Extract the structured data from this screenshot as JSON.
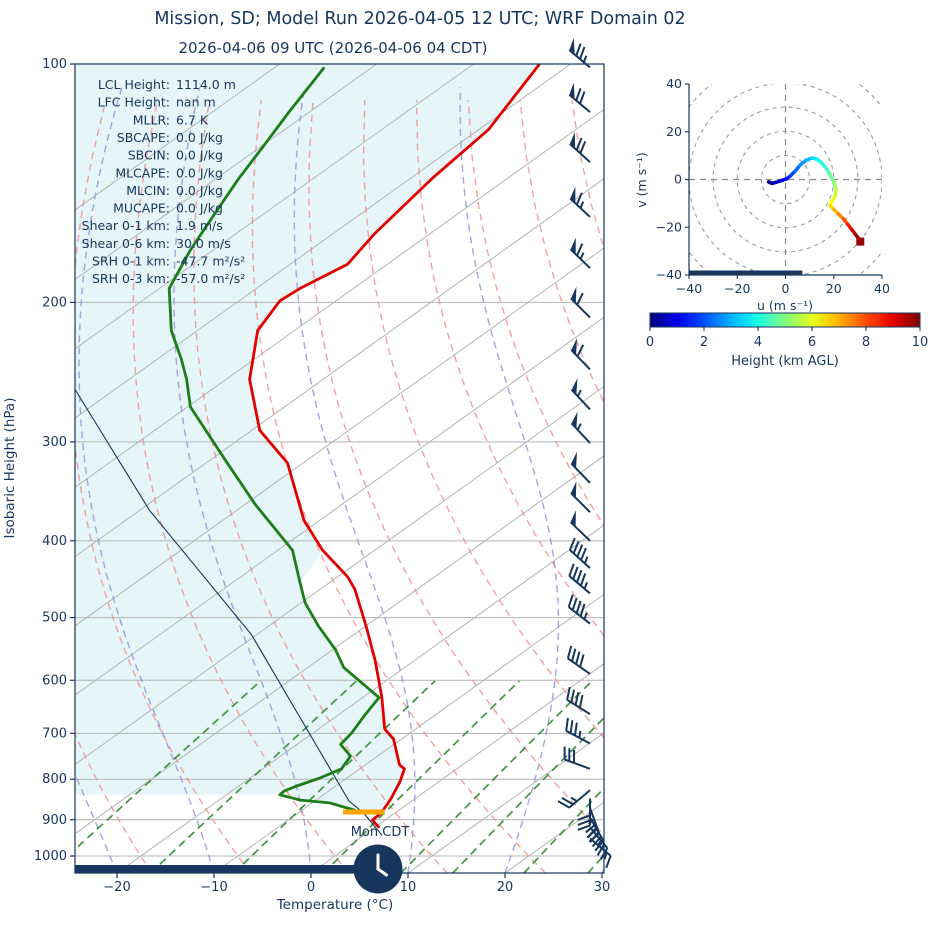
{
  "header": {
    "title": "Mission, SD; Model Run 2026-04-05 12 UTC; WRF Domain 02",
    "subtitle": "2026-04-06 09 UTC  (2026-04-06 04 CDT)"
  },
  "colors": {
    "navy": "#17365d",
    "temperature": "#e00000",
    "dewpoint": "#1e7d1a",
    "parcel": "#17365d",
    "shade": "#d8f0f3",
    "dry_adiabat": "#f09090",
    "moist_adiabat": "#9393de",
    "mixing_ratio": "#2e8b2e",
    "grid": "#b3b3b3",
    "rings": "#9a9a9a",
    "surface_marker": "#ffa500",
    "hodo_end_marker": "#990000"
  },
  "stats": [
    {
      "label": "LCL Height:",
      "value": "1114.0 m"
    },
    {
      "label": "LFC Height:",
      "value": "nan m"
    },
    {
      "label": "MLLR:",
      "value": "6.7 K"
    },
    {
      "label": "SBCAPE:",
      "value": "0.0 J/kg"
    },
    {
      "label": "SBCIN:",
      "value": "0.0 J/kg"
    },
    {
      "label": "MLCAPE:",
      "value": "0.0 J/kg"
    },
    {
      "label": "MLCIN:",
      "value": "0.0 J/kg"
    },
    {
      "label": "MUCAPE:",
      "value": "0.0 J/kg"
    },
    {
      "label": "Shear 0-1 km:",
      "value": "1.9 m/s"
    },
    {
      "label": "Shear 0-6 km:",
      "value": "30.0 m/s"
    },
    {
      "label": "SRH 0-1 km:",
      "value": "-47.7 m²/s²"
    },
    {
      "label": "SRH 0-3 km:",
      "value": "-57.0 m²/s²"
    }
  ],
  "chart_data": {
    "type": "skewt-logp",
    "skewt": {
      "xlabel": "Temperature (°C)",
      "ylabel": "Isobaric Height (hPa)",
      "x_ticks": [
        -20,
        -10,
        0,
        10,
        20,
        30
      ],
      "p_ticks": [
        100,
        200,
        300,
        400,
        500,
        600,
        700,
        800,
        900,
        1000
      ],
      "p_range": [
        100,
        1051
      ],
      "isotherms": {
        "min": -120,
        "max": 30,
        "step": 10
      },
      "dry_adiabats": {
        "min": -60,
        "max": 180,
        "step": 10
      },
      "moist_adiabats": {
        "min": -50,
        "max": 40,
        "step": 10
      },
      "mixing_ratios_g_kg": [
        0.4,
        1,
        2,
        4,
        7,
        10,
        16,
        24,
        32
      ],
      "mixing_ratio_top_hpa": 600,
      "temperature_c": [
        [
          100,
          -93.2
        ],
        [
          121,
          -89.0
        ],
        [
          139,
          -87.8
        ],
        [
          164,
          -85.7
        ],
        [
          179,
          -84.1
        ],
        [
          192,
          -85.5
        ],
        [
          199,
          -85.8
        ],
        [
          217,
          -83.8
        ],
        [
          250,
          -77.6
        ],
        [
          290,
          -69.2
        ],
        [
          319,
          -61.6
        ],
        [
          377,
          -51.6
        ],
        [
          411,
          -45.4
        ],
        [
          444,
          -39.0
        ],
        [
          460,
          -36.5
        ],
        [
          513,
          -29.9
        ],
        [
          566,
          -24.1
        ],
        [
          631,
          -18.0
        ],
        [
          691,
          -13.2
        ],
        [
          712,
          -10.8
        ],
        [
          767,
          -6.5
        ],
        [
          776,
          -5.4
        ],
        [
          806,
          -4.0
        ],
        [
          846,
          -2.5
        ],
        [
          883,
          -1.4
        ],
        [
          901,
          -1.3
        ],
        [
          921,
          0.5
        ]
      ],
      "dewpoint_c": [
        [
          101,
          -114.9
        ],
        [
          115,
          -112.1
        ],
        [
          127,
          -109.8
        ],
        [
          140,
          -107.6
        ],
        [
          155,
          -105.0
        ],
        [
          172,
          -102.3
        ],
        [
          192,
          -99.0
        ],
        [
          217,
          -92.7
        ],
        [
          236,
          -87.5
        ],
        [
          250,
          -84.1
        ],
        [
          271,
          -79.7
        ],
        [
          316,
          -68.5
        ],
        [
          360,
          -58.9
        ],
        [
          411,
          -48.5
        ],
        [
          452,
          -43.0
        ],
        [
          479,
          -39.6
        ],
        [
          513,
          -34.8
        ],
        [
          549,
          -29.7
        ],
        [
          578,
          -26.3
        ],
        [
          631,
          -18.3
        ],
        [
          662,
          -17.3
        ],
        [
          700,
          -16.0
        ],
        [
          723,
          -15.5
        ],
        [
          748,
          -12.8
        ],
        [
          776,
          -11.9
        ],
        [
          797,
          -12.8
        ],
        [
          817,
          -14.1
        ],
        [
          828,
          -14.6
        ],
        [
          837,
          -14.5
        ],
        [
          850,
          -11.6
        ],
        [
          857,
          -8.2
        ],
        [
          875,
          -4.6
        ],
        [
          880,
          -3.9
        ]
      ],
      "parcel_c": [
        [
          258,
          -94.0
        ],
        [
          366,
          -69.0
        ],
        [
          525,
          -40.6
        ],
        [
          852,
          -6.5
        ],
        [
          883,
          -3.2
        ],
        [
          942,
          1.9
        ]
      ],
      "shade_boundary_c": [
        [
          100,
          -93.2
        ],
        [
          121,
          -89.0
        ],
        [
          139,
          -87.8
        ],
        [
          164,
          -85.7
        ],
        [
          179,
          -84.1
        ],
        [
          192,
          -85.5
        ],
        [
          199,
          -85.8
        ],
        [
          217,
          -83.8
        ],
        [
          250,
          -77.6
        ],
        [
          290,
          -69.2
        ],
        [
          319,
          -61.6
        ],
        [
          377,
          -51.6
        ],
        [
          411,
          -45.4
        ],
        [
          452,
          -43.0
        ],
        [
          479,
          -39.6
        ],
        [
          513,
          -34.8
        ],
        [
          549,
          -29.7
        ],
        [
          578,
          -26.3
        ],
        [
          631,
          -18.0
        ],
        [
          691,
          -13.2
        ],
        [
          712,
          -10.8
        ],
        [
          767,
          -6.5
        ],
        [
          776,
          -5.4
        ],
        [
          806,
          -4.0
        ],
        [
          846,
          -2.5
        ],
        [
          883,
          -1.4
        ],
        [
          875,
          -4.6
        ],
        [
          857,
          -8.2
        ],
        [
          850,
          -11.6
        ],
        [
          837,
          -14.5
        ]
      ],
      "surface_marker": {
        "p_hpa": 880,
        "t_from": -5.5,
        "t_to": -1.2
      },
      "day_label": "Mon CDT",
      "clock_time": "4:00",
      "wind_barbs_p_dir_kt": [
        [
          101,
          310,
          75
        ],
        [
          115,
          310,
          70
        ],
        [
          133,
          312,
          70
        ],
        [
          156,
          313,
          65
        ],
        [
          181,
          314,
          65
        ],
        [
          209,
          315,
          60
        ],
        [
          243,
          316,
          60
        ],
        [
          273,
          317,
          55
        ],
        [
          301,
          317,
          55
        ],
        [
          338,
          316,
          50
        ],
        [
          368,
          315,
          50
        ],
        [
          400,
          314,
          50
        ],
        [
          433,
          312,
          45
        ],
        [
          466,
          310,
          45
        ],
        [
          509,
          308,
          45
        ],
        [
          589,
          305,
          40
        ],
        [
          662,
          302,
          40
        ],
        [
          721,
          298,
          35
        ],
        [
          776,
          290,
          30
        ],
        [
          826,
          230,
          25
        ],
        [
          846,
          180,
          30
        ],
        [
          870,
          160,
          35
        ],
        [
          894,
          150,
          40
        ],
        [
          920,
          140,
          25
        ],
        [
          950,
          130,
          15
        ]
      ]
    },
    "hodograph": {
      "xlabel": "u (m s⁻¹)",
      "ylabel": "v (m s⁻¹)",
      "ticks": [
        -40,
        -20,
        0,
        20,
        40
      ],
      "range": [
        -40,
        40
      ],
      "ring_radii": [
        10,
        20,
        30,
        40,
        50
      ],
      "trace_u_v_km": [
        [
          -7,
          -1,
          0
        ],
        [
          -6.5,
          -1.3,
          0.1
        ],
        [
          -5.5,
          -1.6,
          0.25
        ],
        [
          -4,
          -1.2,
          0.5
        ],
        [
          -2.5,
          -0.7,
          0.8
        ],
        [
          -1,
          -0.2,
          1.0
        ],
        [
          0.5,
          0.3,
          1.3
        ],
        [
          2,
          1.5,
          1.7
        ],
        [
          4,
          3.5,
          2.1
        ],
        [
          6,
          6,
          2.5
        ],
        [
          8.5,
          8,
          2.9
        ],
        [
          11,
          9,
          3.2
        ],
        [
          13,
          8.5,
          3.6
        ],
        [
          15,
          7,
          4.0
        ],
        [
          17,
          4.5,
          4.3
        ],
        [
          18.5,
          2,
          4.6
        ],
        [
          20,
          -1,
          5.0
        ],
        [
          21,
          -4,
          5.4
        ],
        [
          20.5,
          -7,
          5.8
        ],
        [
          19,
          -9.5,
          6.1
        ],
        [
          18.5,
          -11,
          6.4
        ],
        [
          20,
          -12.5,
          6.8
        ],
        [
          22,
          -14.5,
          7.2
        ],
        [
          24,
          -16.5,
          7.7
        ],
        [
          26,
          -19,
          8.3
        ],
        [
          27.5,
          -21,
          8.8
        ],
        [
          29,
          -23,
          9.4
        ],
        [
          30.5,
          -25,
          10
        ]
      ],
      "end_marker_u_v": [
        31,
        -26
      ],
      "ground_bar_u": [
        -40,
        7
      ]
    },
    "colorbar": {
      "label": "Height (km AGL)",
      "ticks": [
        0,
        2,
        4,
        6,
        8,
        10
      ],
      "range_km": [
        0,
        10
      ],
      "colormap": "jet"
    }
  }
}
